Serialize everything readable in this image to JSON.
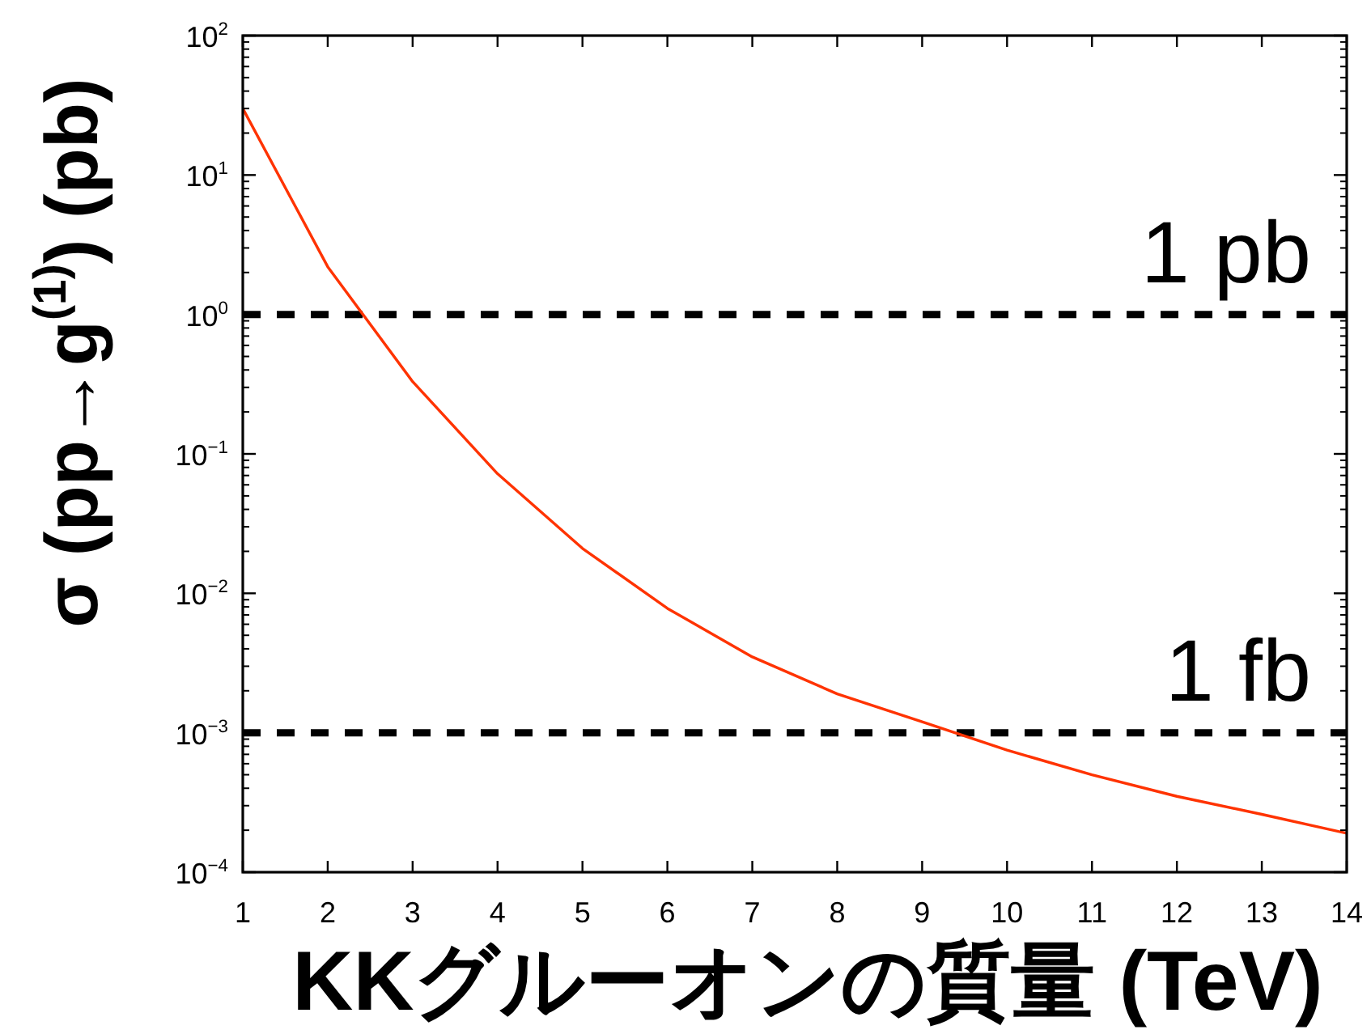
{
  "chart_data": {
    "type": "line",
    "xlabel": "KKグルーオンの質量 (TeV)",
    "ylabel": "σ (pp→g$^{(1)}$) (pb)",
    "x": [
      1,
      2,
      3,
      4,
      5,
      6,
      7,
      8,
      9,
      10,
      11,
      12,
      13,
      14
    ],
    "series": [
      {
        "color": "#ff3300",
        "values": [
          30,
          2.2,
          0.33,
          0.072,
          0.021,
          0.0078,
          0.0035,
          0.0019,
          0.0012,
          0.00075,
          0.0005,
          0.00035,
          0.00026,
          0.00019
        ]
      }
    ],
    "log": true,
    "xlim": [
      1,
      14
    ],
    "xticks": [
      1,
      2,
      3,
      4,
      5,
      6,
      7,
      8,
      9,
      10,
      11,
      12,
      13,
      14
    ],
    "ylim": [
      0.0001,
      100
    ],
    "yticks": [
      {
        "value": 0.0001,
        "label": "10$^{−4}$"
      },
      {
        "value": 0.001,
        "label": "10$^{−3}$"
      },
      {
        "value": 0.01,
        "label": "10$^{−2}$"
      },
      {
        "value": 0.1,
        "label": "10$^{−1}$"
      },
      {
        "value": 1,
        "label": "10$^{0}$"
      },
      {
        "value": 10,
        "label": "10$^{1}$"
      },
      {
        "value": 100,
        "label": "10$^{2}$"
      }
    ],
    "ref_lines": [
      {
        "axis": "y",
        "value": 1,
        "label": "1 pb",
        "color": "#000000",
        "line_style": "dashed"
      },
      {
        "axis": "y",
        "value": 0.001,
        "label": "1 fb",
        "color": "#000000",
        "line_style": "dashed"
      }
    ]
  }
}
